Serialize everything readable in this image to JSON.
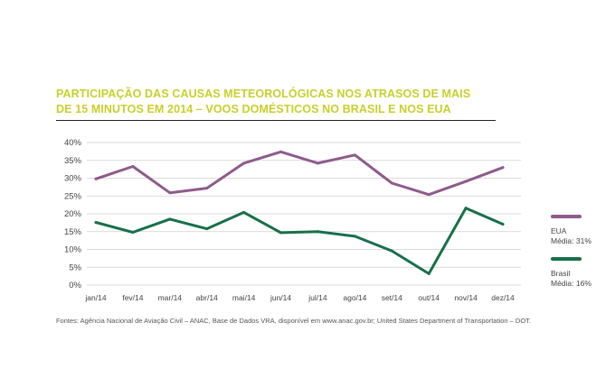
{
  "title_line1": "PARTICIPAÇÃO DAS CAUSAS METEOROLÓGICAS NOS ATRASOS DE MAIS",
  "title_line2": "DE 15 MINUTOS EM 2014 – VOOS DOMÉSTICOS NO BRASIL E NOS EUA",
  "source": "Fontes: Agência Nacional de Aviação Civil – ANAC, Base de Dados VRA, disponível em www.anac.gov.br; United States Department of Transportation – DOT.",
  "colors": {
    "title": "#c8cf2a",
    "eua": "#8e5b8c",
    "brasil": "#17704a",
    "grid": "#cfcfcf"
  },
  "chart_data": {
    "type": "line",
    "title": "PARTICIPAÇÃO DAS CAUSAS METEOROLÓGICAS NOS ATRASOS DE MAIS DE 15 MINUTOS EM 2014 – VOOS DOMÉSTICOS NO BRASIL E NOS EUA",
    "categories": [
      "jan/14",
      "fev/14",
      "mar/14",
      "abr/14",
      "mai/14",
      "jun/14",
      "jul/14",
      "ago/14",
      "set/14",
      "out/14",
      "nov/14",
      "dez/14"
    ],
    "y_ticks": [
      "0%",
      "5%",
      "10%",
      "15%",
      "20%",
      "25%",
      "30%",
      "35%",
      "40%"
    ],
    "ylim": [
      0,
      40
    ],
    "grid": true,
    "legend_position": "right",
    "series": [
      {
        "name": "EUA",
        "label": "EUA",
        "sublabel": "Média: 31%",
        "color": "#8e5b8c",
        "values": [
          29.8,
          33.3,
          25.9,
          27.2,
          34.2,
          37.4,
          34.2,
          36.5,
          28.6,
          25.4,
          29.1,
          33.0
        ]
      },
      {
        "name": "Brasil",
        "label": "Brasil",
        "sublabel": "Média: 16%",
        "color": "#17704a",
        "values": [
          17.6,
          14.8,
          18.5,
          15.8,
          20.4,
          14.7,
          15.0,
          13.7,
          9.6,
          3.2,
          21.6,
          17.1
        ]
      }
    ]
  }
}
